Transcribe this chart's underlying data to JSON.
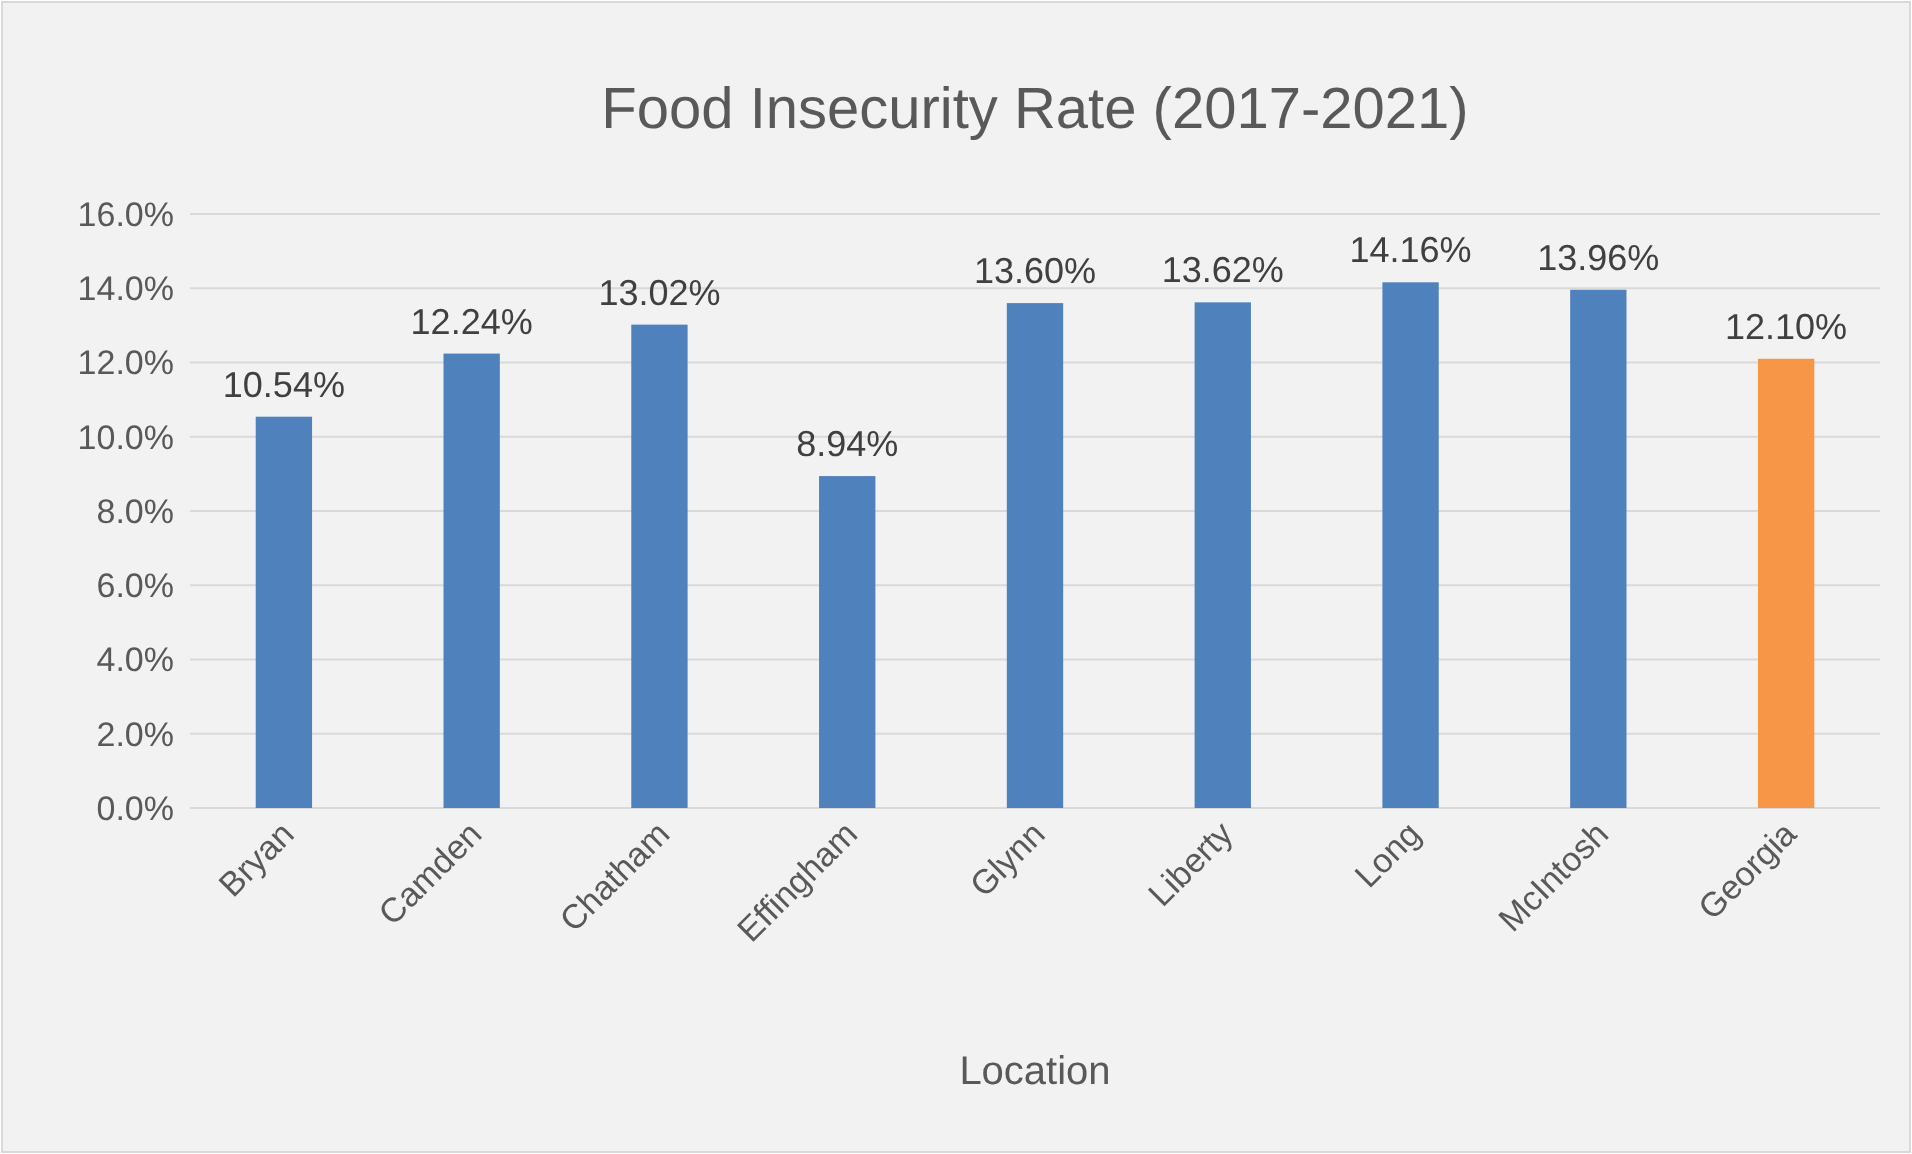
{
  "chart_data": {
    "type": "bar",
    "title": "Food Insecurity Rate (2017-2021)",
    "xlabel": "Location",
    "categories": [
      "Bryan",
      "Camden",
      "Chatham",
      "Effingham",
      "Glynn",
      "Liberty",
      "Long",
      "McIntosh",
      "Georgia"
    ],
    "values": [
      10.54,
      12.24,
      13.02,
      8.94,
      13.6,
      13.62,
      14.16,
      13.96,
      12.1
    ],
    "colors": [
      "#4f81bd",
      "#4f81bd",
      "#4f81bd",
      "#4f81bd",
      "#4f81bd",
      "#4f81bd",
      "#4f81bd",
      "#4f81bd",
      "#f79646"
    ],
    "value_labels": [
      "10.54%",
      "12.24%",
      "13.02%",
      "8.94%",
      "13.60%",
      "13.62%",
      "14.16%",
      "13.96%",
      "12.10%"
    ],
    "ylim": [
      0,
      16
    ],
    "yticks": [
      {
        "value": 0,
        "label": "0.0%"
      },
      {
        "value": 2,
        "label": "2.0%"
      },
      {
        "value": 4,
        "label": "4.0%"
      },
      {
        "value": 6,
        "label": "6.0%"
      },
      {
        "value": 8,
        "label": "8.0%"
      },
      {
        "value": 10,
        "label": "10.0%"
      },
      {
        "value": 12,
        "label": "12.0%"
      },
      {
        "value": 14,
        "label": "14.0%"
      },
      {
        "value": 16,
        "label": "16.0%"
      }
    ],
    "grid": "y"
  }
}
